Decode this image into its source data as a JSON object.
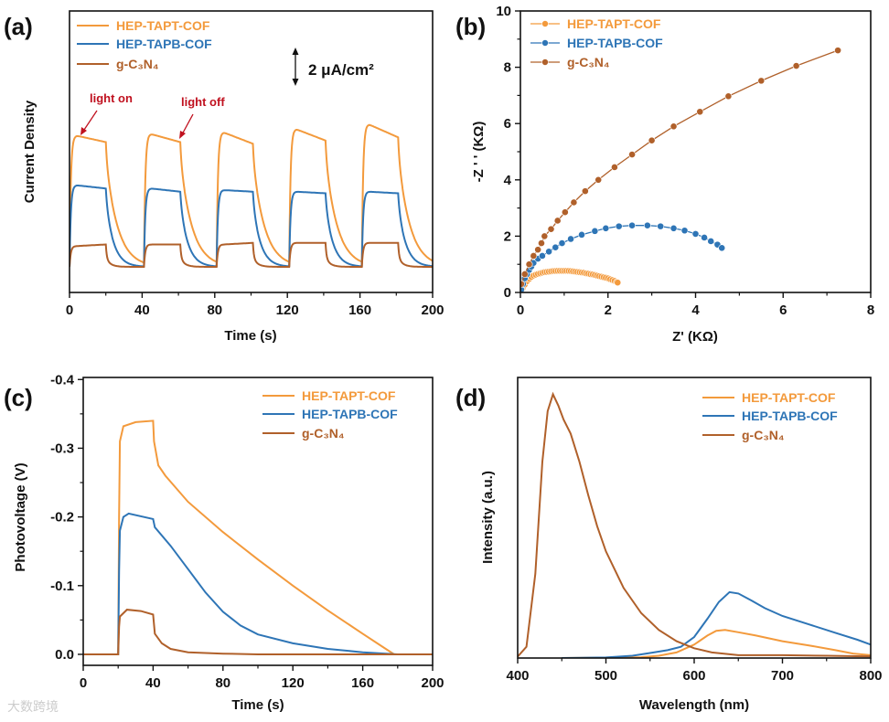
{
  "colors": {
    "tapt": "#F39A3C",
    "tapb": "#2E75B6",
    "gcn": "#B0602A",
    "annotation": "#C0111F"
  },
  "watermark": "大数跨境",
  "chart_data": [
    {
      "id": "a",
      "panel_label": "(a)",
      "type": "line",
      "title": "",
      "xlabel": "Time (s)",
      "ylabel": "Current Density",
      "xlim": [
        0,
        200
      ],
      "xticks": [
        0,
        40,
        80,
        120,
        160,
        200
      ],
      "xminor": [
        20,
        60,
        100,
        140,
        180
      ],
      "ylim": [
        -1.6,
        16
      ],
      "y_unit": "μA/cm²",
      "scale_bar": "2 μA/cm²",
      "scale_bar_value": 2,
      "annotations": [
        "light on",
        "light off"
      ],
      "light_on_times": [
        0,
        41,
        81,
        121,
        161
      ],
      "light_duration": 20,
      "series": [
        {
          "name": "HEP-TAPT-COF",
          "color_key": "tapt",
          "peak": [
            8.2,
            8.3,
            8.4,
            8.6,
            8.9
          ],
          "end": [
            7.8,
            7.8,
            7.7,
            7.9,
            8.1
          ],
          "fast_fraction": 0.12,
          "tau_fast": 0.6,
          "tau_slow": 6.5
        },
        {
          "name": "HEP-TAPB-COF",
          "color_key": "tapb",
          "peak": [
            5.1,
            4.9,
            4.8,
            4.7,
            4.7
          ],
          "end": [
            4.9,
            4.7,
            4.7,
            4.6,
            4.6
          ],
          "fast_fraction": 0.12,
          "tau_fast": 0.6,
          "tau_slow": 4.2
        },
        {
          "name": "g-C₃N₄",
          "color_key": "gcn",
          "peak": [
            1.3,
            1.4,
            1.4,
            1.5,
            1.5
          ],
          "end": [
            1.4,
            1.4,
            1.5,
            1.5,
            1.5
          ],
          "fast_fraction": 0.6,
          "tau_fast": 0.5,
          "tau_slow": 2.5
        }
      ]
    },
    {
      "id": "b",
      "panel_label": "(b)",
      "type": "scatter",
      "xlabel": "Z' (KΩ)",
      "ylabel": "-Z ' ' (KΩ)",
      "xlim": [
        0,
        8
      ],
      "ylim": [
        0,
        10
      ],
      "xticks": [
        0,
        2,
        4,
        6,
        8
      ],
      "xminor": [
        1,
        3,
        5,
        7
      ],
      "yticks": [
        0,
        2,
        4,
        6,
        8,
        10
      ],
      "yminor": [
        1,
        3,
        5,
        7,
        9
      ],
      "series": [
        {
          "name": "HEP-TAPT-COF",
          "color_key": "tapt",
          "points": [
            [
              0.02,
              0.05
            ],
            [
              0.05,
              0.15
            ],
            [
              0.1,
              0.28
            ],
            [
              0.15,
              0.4
            ],
            [
              0.2,
              0.48
            ],
            [
              0.25,
              0.55
            ],
            [
              0.3,
              0.6
            ],
            [
              0.35,
              0.63
            ],
            [
              0.4,
              0.66
            ],
            [
              0.45,
              0.68
            ],
            [
              0.5,
              0.7
            ],
            [
              0.55,
              0.72
            ],
            [
              0.6,
              0.73
            ],
            [
              0.65,
              0.74
            ],
            [
              0.7,
              0.75
            ],
            [
              0.75,
              0.76
            ],
            [
              0.8,
              0.765
            ],
            [
              0.85,
              0.77
            ],
            [
              0.9,
              0.77
            ],
            [
              0.95,
              0.77
            ],
            [
              1.0,
              0.77
            ],
            [
              1.05,
              0.77
            ],
            [
              1.1,
              0.765
            ],
            [
              1.15,
              0.76
            ],
            [
              1.2,
              0.75
            ],
            [
              1.25,
              0.74
            ],
            [
              1.3,
              0.73
            ],
            [
              1.35,
              0.72
            ],
            [
              1.4,
              0.71
            ],
            [
              1.45,
              0.7
            ],
            [
              1.5,
              0.68
            ],
            [
              1.55,
              0.67
            ],
            [
              1.6,
              0.65
            ],
            [
              1.65,
              0.64
            ],
            [
              1.7,
              0.62
            ],
            [
              1.75,
              0.6
            ],
            [
              1.8,
              0.58
            ],
            [
              1.85,
              0.56
            ],
            [
              1.9,
              0.54
            ],
            [
              1.95,
              0.52
            ],
            [
              2.0,
              0.5
            ],
            [
              2.05,
              0.47
            ],
            [
              2.1,
              0.44
            ],
            [
              2.15,
              0.41
            ],
            [
              2.2,
              0.37
            ],
            [
              2.22,
              0.35
            ]
          ]
        },
        {
          "name": "HEP-TAPB-COF",
          "color_key": "tapb",
          "points": [
            [
              0.02,
              0.1
            ],
            [
              0.06,
              0.3
            ],
            [
              0.1,
              0.5
            ],
            [
              0.15,
              0.65
            ],
            [
              0.2,
              0.8
            ],
            [
              0.25,
              0.92
            ],
            [
              0.3,
              1.05
            ],
            [
              0.4,
              1.2
            ],
            [
              0.5,
              1.3
            ],
            [
              0.65,
              1.45
            ],
            [
              0.8,
              1.6
            ],
            [
              0.95,
              1.75
            ],
            [
              1.15,
              1.9
            ],
            [
              1.4,
              2.05
            ],
            [
              1.7,
              2.18
            ],
            [
              1.95,
              2.28
            ],
            [
              2.25,
              2.35
            ],
            [
              2.55,
              2.38
            ],
            [
              2.9,
              2.38
            ],
            [
              3.2,
              2.35
            ],
            [
              3.5,
              2.28
            ],
            [
              3.75,
              2.2
            ],
            [
              4.0,
              2.08
            ],
            [
              4.2,
              1.95
            ],
            [
              4.35,
              1.82
            ],
            [
              4.5,
              1.7
            ],
            [
              4.6,
              1.58
            ]
          ]
        },
        {
          "name": "g-C₃N₄",
          "color_key": "gcn",
          "points": [
            [
              0.02,
              0.3
            ],
            [
              0.1,
              0.65
            ],
            [
              0.2,
              1.0
            ],
            [
              0.3,
              1.3
            ],
            [
              0.4,
              1.52
            ],
            [
              0.48,
              1.75
            ],
            [
              0.55,
              2.0
            ],
            [
              0.7,
              2.25
            ],
            [
              0.85,
              2.55
            ],
            [
              1.02,
              2.85
            ],
            [
              1.22,
              3.2
            ],
            [
              1.48,
              3.6
            ],
            [
              1.78,
              4.0
            ],
            [
              2.15,
              4.45
            ],
            [
              2.55,
              4.9
            ],
            [
              3.0,
              5.4
            ],
            [
              3.5,
              5.9
            ],
            [
              4.1,
              6.42
            ],
            [
              4.75,
              6.97
            ],
            [
              5.5,
              7.52
            ],
            [
              6.3,
              8.05
            ],
            [
              7.25,
              8.6
            ]
          ]
        }
      ]
    },
    {
      "id": "c",
      "panel_label": "(c)",
      "type": "line",
      "xlabel": "Time (s)",
      "ylabel": "Photovoltage (V)",
      "xlim": [
        0,
        200
      ],
      "ylim": [
        0.016,
        -0.403
      ],
      "xticks": [
        0,
        40,
        80,
        120,
        160,
        200
      ],
      "xminor": [
        20,
        60,
        100,
        140,
        180
      ],
      "yticks": [
        0.0,
        -0.1,
        -0.2,
        -0.3,
        -0.4
      ],
      "ytick_labels": [
        "0.0",
        "-0.1",
        "-0.2",
        "-0.3",
        "-0.4"
      ],
      "yminor": [
        -0.05,
        -0.15,
        -0.25,
        -0.35
      ],
      "series": [
        {
          "name": "HEP-TAPT-COF",
          "color_key": "tapt",
          "points": [
            [
              0,
              0
            ],
            [
              20,
              0
            ],
            [
              20.5,
              -0.2
            ],
            [
              21,
              -0.31
            ],
            [
              23,
              -0.332
            ],
            [
              30,
              -0.338
            ],
            [
              40,
              -0.34
            ],
            [
              40.5,
              -0.31
            ],
            [
              43,
              -0.275
            ],
            [
              47,
              -0.26
            ],
            [
              60,
              -0.222
            ],
            [
              80,
              -0.178
            ],
            [
              100,
              -0.138
            ],
            [
              120,
              -0.1
            ],
            [
              140,
              -0.064
            ],
            [
              160,
              -0.03
            ],
            [
              172,
              -0.01
            ],
            [
              178,
              0
            ],
            [
              200,
              0
            ]
          ]
        },
        {
          "name": "HEP-TAPB-COF",
          "color_key": "tapb",
          "points": [
            [
              0,
              0
            ],
            [
              20,
              0
            ],
            [
              20.5,
              -0.12
            ],
            [
              21,
              -0.18
            ],
            [
              23,
              -0.2
            ],
            [
              26,
              -0.205
            ],
            [
              40,
              -0.197
            ],
            [
              41,
              -0.185
            ],
            [
              50,
              -0.158
            ],
            [
              60,
              -0.124
            ],
            [
              70,
              -0.09
            ],
            [
              80,
              -0.062
            ],
            [
              90,
              -0.042
            ],
            [
              100,
              -0.029
            ],
            [
              120,
              -0.016
            ],
            [
              140,
              -0.008
            ],
            [
              160,
              -0.003
            ],
            [
              180,
              0
            ],
            [
              200,
              0
            ]
          ]
        },
        {
          "name": "g-C₃N₄",
          "color_key": "gcn",
          "points": [
            [
              0,
              0
            ],
            [
              20,
              0
            ],
            [
              20.5,
              -0.04
            ],
            [
              21,
              -0.055
            ],
            [
              25,
              -0.065
            ],
            [
              33,
              -0.063
            ],
            [
              40,
              -0.058
            ],
            [
              41,
              -0.03
            ],
            [
              45,
              -0.016
            ],
            [
              50,
              -0.008
            ],
            [
              60,
              -0.003
            ],
            [
              80,
              -0.001
            ],
            [
              100,
              0
            ],
            [
              200,
              0
            ]
          ]
        }
      ]
    },
    {
      "id": "d",
      "panel_label": "(d)",
      "type": "line",
      "xlabel": "Wavelength (nm)",
      "ylabel": "Intensity (a.u.)",
      "xlim": [
        400,
        800
      ],
      "ylim": [
        0,
        1
      ],
      "xticks": [
        400,
        500,
        600,
        700,
        800
      ],
      "xminor": [
        450,
        550,
        650,
        750
      ],
      "series": [
        {
          "name": "HEP-TAPT-COF",
          "color_key": "tapt",
          "points": [
            [
              450,
              0
            ],
            [
              540,
              0.003
            ],
            [
              560,
              0.008
            ],
            [
              580,
              0.02
            ],
            [
              600,
              0.048
            ],
            [
              615,
              0.08
            ],
            [
              625,
              0.097
            ],
            [
              635,
              0.1
            ],
            [
              650,
              0.092
            ],
            [
              670,
              0.08
            ],
            [
              700,
              0.06
            ],
            [
              730,
              0.045
            ],
            [
              760,
              0.028
            ],
            [
              780,
              0.016
            ],
            [
              800,
              0.01
            ]
          ]
        },
        {
          "name": "HEP-TAPB-COF",
          "color_key": "tapb",
          "points": [
            [
              450,
              0
            ],
            [
              500,
              0.002
            ],
            [
              530,
              0.008
            ],
            [
              550,
              0.018
            ],
            [
              570,
              0.028
            ],
            [
              585,
              0.04
            ],
            [
              600,
              0.075
            ],
            [
              615,
              0.14
            ],
            [
              628,
              0.2
            ],
            [
              640,
              0.235
            ],
            [
              650,
              0.23
            ],
            [
              665,
              0.205
            ],
            [
              680,
              0.178
            ],
            [
              700,
              0.15
            ],
            [
              730,
              0.12
            ],
            [
              760,
              0.09
            ],
            [
              785,
              0.065
            ],
            [
              800,
              0.048
            ]
          ]
        },
        {
          "name": "g-C₃N₄",
          "color_key": "gcn",
          "points": [
            [
              400,
              0.005
            ],
            [
              410,
              0.04
            ],
            [
              420,
              0.3
            ],
            [
              428,
              0.7
            ],
            [
              434,
              0.88
            ],
            [
              440,
              0.94
            ],
            [
              446,
              0.9
            ],
            [
              452,
              0.85
            ],
            [
              460,
              0.8
            ],
            [
              470,
              0.7
            ],
            [
              480,
              0.58
            ],
            [
              490,
              0.47
            ],
            [
              500,
              0.38
            ],
            [
              520,
              0.25
            ],
            [
              540,
              0.16
            ],
            [
              560,
              0.1
            ],
            [
              580,
              0.06
            ],
            [
              600,
              0.035
            ],
            [
              620,
              0.02
            ],
            [
              650,
              0.01
            ],
            [
              700,
              0.01
            ],
            [
              750,
              0.008
            ],
            [
              800,
              0.006
            ]
          ]
        }
      ]
    }
  ]
}
